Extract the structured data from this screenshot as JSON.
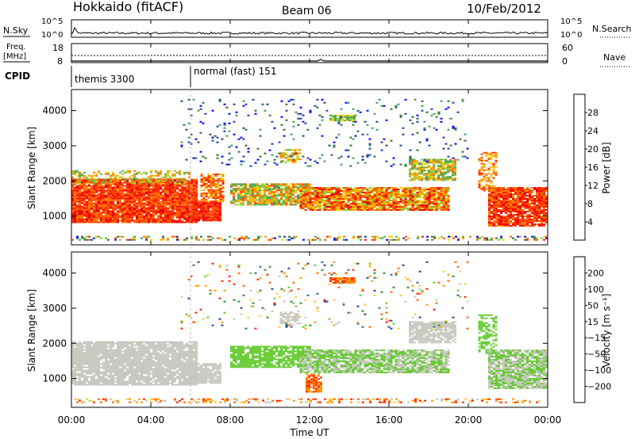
{
  "header": {
    "station": "Hokkaido (fitACF)",
    "beam": "Beam 06",
    "date": "10/Feb/2012"
  },
  "top_panels": {
    "nsky": {
      "label": "N.Sky",
      "ticks": [
        "10^5",
        "10^0"
      ]
    },
    "nsearch": {
      "label": "N.Search",
      "ticks": [
        "10^5",
        "10^0"
      ]
    },
    "freq": {
      "label": "Freq.",
      "unit": "[MHz]",
      "ticks": [
        "18",
        "8"
      ]
    },
    "nave": {
      "label": "Nave",
      "ticks": [
        "60",
        "0"
      ]
    },
    "cpid": {
      "label": "CPID",
      "modes": [
        {
          "name": "themis 3300",
          "start_hour": 0.0
        },
        {
          "name": "normal (fast) 151",
          "start_hour": 6.0
        }
      ]
    }
  },
  "chart_data": [
    {
      "type": "heatmap",
      "name": "power",
      "ylabel": "Slant Range [km]",
      "yticks": [
        1000,
        2000,
        3000,
        4000
      ],
      "ylim": [
        180,
        4600
      ],
      "xlim": [
        0,
        24
      ],
      "colorbar": {
        "label": "Power [dB]",
        "ticks": [
          "28",
          "24",
          "20",
          "16",
          "12",
          "8",
          "4"
        ],
        "colors": [
          "#0000ff",
          "#1d3fa8",
          "#2e6e3a",
          "#3f9c5a",
          "#55b24a",
          "#8ccb3a",
          "#ffcc00",
          "#ffa500",
          "#ff7a00",
          "#ff4d00",
          "#ff2200",
          "#ee0000"
        ]
      }
    },
    {
      "type": "heatmap",
      "name": "velocity",
      "ylabel": "Slant Range [km]",
      "yticks": [
        1000,
        2000,
        3000,
        4000
      ],
      "ylim": [
        180,
        4600
      ],
      "xlim": [
        0,
        24
      ],
      "colorbar": {
        "label": "Velocity [m s⁻¹]",
        "ticks": [
          "200",
          "100",
          "50",
          "15",
          "−15",
          "−50",
          "−100",
          "−200"
        ],
        "colors": [
          "#1f3fa0",
          "#2e6a8a",
          "#2e8b3a",
          "#66cc33",
          "#c8c8c0",
          "#ffcc33",
          "#ff9900",
          "#ff6600",
          "#ff2200"
        ]
      }
    }
  ],
  "xaxis": {
    "ticks": [
      "00:00",
      "04:00",
      "08:00",
      "12:00",
      "16:00",
      "20:00",
      "00:00"
    ],
    "hours": [
      0,
      4,
      8,
      12,
      16,
      20,
      24
    ],
    "label": "Time UT"
  }
}
